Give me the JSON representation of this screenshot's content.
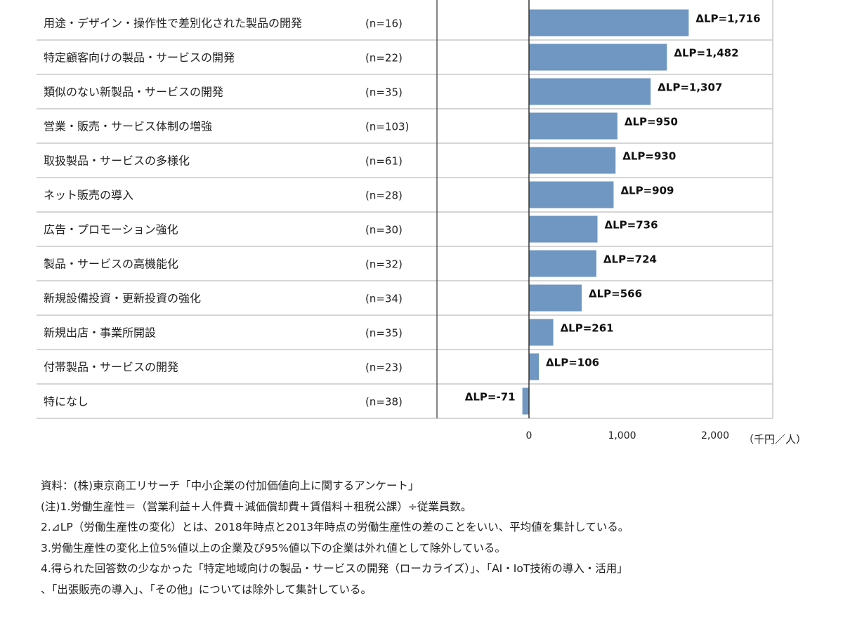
{
  "chart_data": {
    "type": "bar",
    "orientation": "horizontal",
    "categories": [
      "用途・デザイン・操作性で差別化された製品の開発",
      "特定顧客向けの製品・サービスの開発",
      "類似のない新製品・サービスの開発",
      "営業・販売・サービス体制の増強",
      "取扱製品・サービスの多様化",
      "ネット販売の導入",
      "広告・プロモーション強化",
      "製品・サービスの高機能化",
      "新規設備投資・更新投資の強化",
      "新規出店・事業所開設",
      "付帯製品・サービスの開発",
      "特になし"
    ],
    "n_labels": [
      "(n=16)",
      "(n=22)",
      "(n=35)",
      "(n=103)",
      "(n=61)",
      "(n=28)",
      "(n=30)",
      "(n=32)",
      "(n=34)",
      "(n=35)",
      "(n=23)",
      "(n=38)"
    ],
    "values": [
      1716,
      1482,
      1307,
      950,
      930,
      909,
      736,
      724,
      566,
      261,
      106,
      -71
    ],
    "value_labels": [
      "ΔLP=1,716",
      "ΔLP=1,482",
      "ΔLP=1,307",
      "ΔLP=950",
      "ΔLP=930",
      "ΔLP=909",
      "ΔLP=736",
      "ΔLP=724",
      "ΔLP=566",
      "ΔLP=261",
      "ΔLP=106",
      "ΔLP=-71"
    ],
    "xticks": [
      0,
      1000,
      2000
    ],
    "xtick_labels": [
      "0",
      "1,000",
      "2,000"
    ],
    "xlim": [
      -1000,
      2600
    ],
    "unit": "（千円／人）",
    "bar_color": "#6f97c1",
    "grid": false
  },
  "notes": [
    "資料：(株)東京商工リサーチ「中小企業の付加価値向上に関するアンケート」",
    "(注)1.労働生産性＝（営業利益＋人件費＋減価償却費＋賃借料＋租税公課）÷従業員数。",
    "2.⊿LP（労働生産性の変化）とは、2018年時点と2013年時点の労働生産性の差のことをいい、平均値を集計している。",
    "3.労働生産性の変化上位5%値以上の企業及び95%値以下の企業は外れ値として除外している。",
    "4.得られた回答数の少なかった「特定地域向けの製品・サービスの開発（ローカライズ）」、「AI・IoT技術の導入・活用」",
    "、「出張販売の導入」、「その他」については除外して集計している。"
  ]
}
